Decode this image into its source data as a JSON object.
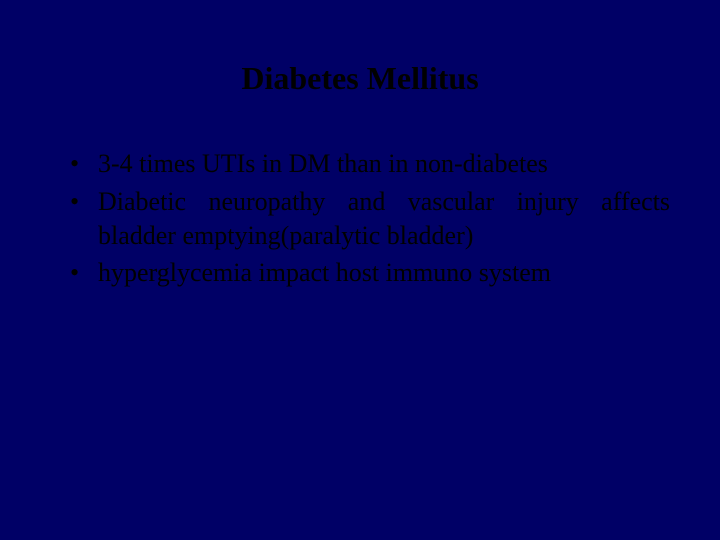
{
  "slide": {
    "background_color": "#000066",
    "title": "Diabetes Mellitus",
    "title_fontsize": 32,
    "title_color": "#000000",
    "body_fontsize": 26,
    "body_color": "#000000",
    "bullets": [
      {
        "text": "3-4 times UTIs in DM than in non-diabetes",
        "justify": false
      },
      {
        "text": "Diabetic neuropathy and vascular injury affects bladder emptying(paralytic bladder)",
        "justify": true
      },
      {
        "text": "hyperglycemia impact host immuno system",
        "justify": false
      }
    ]
  }
}
